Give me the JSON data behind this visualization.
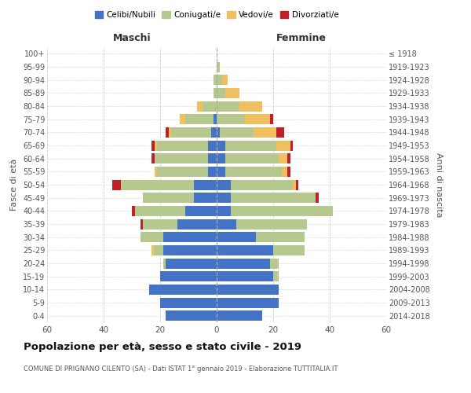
{
  "age_groups": [
    "0-4",
    "5-9",
    "10-14",
    "15-19",
    "20-24",
    "25-29",
    "30-34",
    "35-39",
    "40-44",
    "45-49",
    "50-54",
    "55-59",
    "60-64",
    "65-69",
    "70-74",
    "75-79",
    "80-84",
    "85-89",
    "90-94",
    "95-99",
    "100+"
  ],
  "birth_years": [
    "2014-2018",
    "2009-2013",
    "2004-2008",
    "1999-2003",
    "1994-1998",
    "1989-1993",
    "1984-1988",
    "1979-1983",
    "1974-1978",
    "1969-1973",
    "1964-1968",
    "1959-1963",
    "1954-1958",
    "1949-1953",
    "1944-1948",
    "1939-1943",
    "1934-1938",
    "1929-1933",
    "1924-1928",
    "1919-1923",
    "≤ 1918"
  ],
  "male": {
    "celibi": [
      18,
      20,
      24,
      20,
      18,
      19,
      19,
      14,
      11,
      8,
      8,
      3,
      3,
      3,
      2,
      1,
      0,
      0,
      0,
      0,
      0
    ],
    "coniugati": [
      0,
      0,
      0,
      0,
      1,
      3,
      8,
      12,
      18,
      18,
      26,
      18,
      19,
      18,
      14,
      10,
      5,
      1,
      1,
      0,
      0
    ],
    "vedovi": [
      0,
      0,
      0,
      0,
      0,
      1,
      0,
      0,
      0,
      0,
      0,
      1,
      0,
      1,
      1,
      2,
      2,
      0,
      0,
      0,
      0
    ],
    "divorziati": [
      0,
      0,
      0,
      0,
      0,
      0,
      0,
      1,
      1,
      0,
      3,
      0,
      1,
      1,
      1,
      0,
      0,
      0,
      0,
      0,
      0
    ]
  },
  "female": {
    "nubili": [
      16,
      22,
      22,
      20,
      19,
      20,
      14,
      7,
      5,
      5,
      5,
      3,
      3,
      3,
      1,
      0,
      0,
      0,
      0,
      0,
      0
    ],
    "coniugate": [
      0,
      0,
      0,
      2,
      3,
      11,
      17,
      25,
      36,
      30,
      22,
      20,
      19,
      18,
      12,
      10,
      8,
      3,
      2,
      1,
      0
    ],
    "vedove": [
      0,
      0,
      0,
      0,
      0,
      0,
      0,
      0,
      0,
      0,
      1,
      2,
      3,
      5,
      8,
      9,
      8,
      5,
      2,
      0,
      0
    ],
    "divorziate": [
      0,
      0,
      0,
      0,
      0,
      0,
      0,
      0,
      0,
      1,
      1,
      1,
      1,
      1,
      3,
      1,
      0,
      0,
      0,
      0,
      0
    ]
  },
  "colors": {
    "celibi": "#4472c4",
    "coniugati": "#b5c98e",
    "vedovi": "#f0c060",
    "divorziati": "#c0202a"
  },
  "title": "Popolazione per età, sesso e stato civile - 2019",
  "subtitle": "COMUNE DI PRIGNANO CILENTO (SA) - Dati ISTAT 1° gennaio 2019 - Elaborazione TUTTITALIA.IT",
  "xlabel_left": "Maschi",
  "xlabel_right": "Femmine",
  "ylabel_left": "Fasce di età",
  "ylabel_right": "Anni di nascita",
  "xlim": 60,
  "legend_labels": [
    "Celibi/Nubili",
    "Coniugati/e",
    "Vedovi/e",
    "Divorziati/e"
  ],
  "background_color": "#ffffff",
  "grid_color": "#cccccc"
}
